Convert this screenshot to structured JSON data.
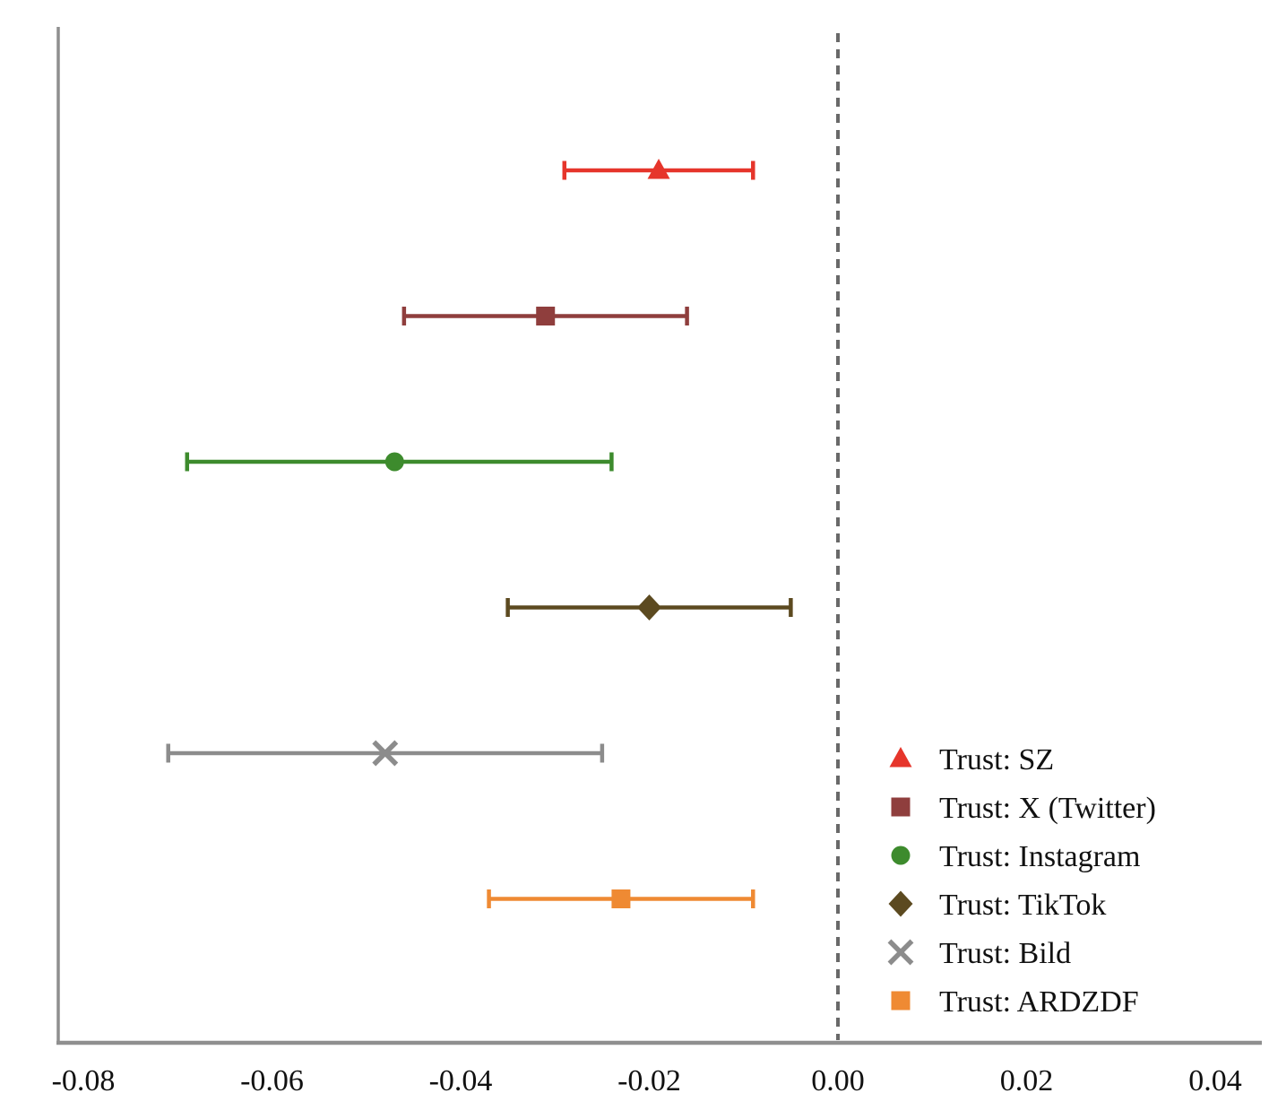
{
  "chart_data": {
    "type": "scatter",
    "subtype": "coefficient-plot-with-error-bars",
    "title": "",
    "xlabel": "",
    "ylabel": "",
    "xlim": [
      -0.0827,
      0.0447
    ],
    "x_ticks": [
      -0.08,
      -0.06,
      -0.04,
      -0.02,
      0.0,
      0.02,
      0.04
    ],
    "x_tick_labels": [
      "-0.08",
      "-0.06",
      "-0.04",
      "-0.02",
      "0.00",
      "0.02",
      "0.04"
    ],
    "y_ticks": [],
    "grid": false,
    "reference_line_x": 0.0,
    "legend_position": "lower right",
    "series": [
      {
        "name": "Trust: SZ",
        "marker": "triangle-up",
        "color": "#e6352b",
        "estimate": -0.019,
        "ci_low": -0.029,
        "ci_high": -0.009
      },
      {
        "name": "Trust: X (Twitter)",
        "marker": "square",
        "color": "#8f3e3d",
        "estimate": -0.031,
        "ci_low": -0.046,
        "ci_high": -0.016
      },
      {
        "name": "Trust: Instagram",
        "marker": "circle",
        "color": "#3d8b2d",
        "estimate": -0.047,
        "ci_low": -0.069,
        "ci_high": -0.024
      },
      {
        "name": "Trust: TikTok",
        "marker": "diamond",
        "color": "#5c4a20",
        "estimate": -0.02,
        "ci_low": -0.035,
        "ci_high": -0.005
      },
      {
        "name": "Trust: Bild",
        "marker": "x",
        "color": "#8c8c8c",
        "estimate": -0.048,
        "ci_low": -0.071,
        "ci_high": -0.025
      },
      {
        "name": "Trust: ARDZDF",
        "marker": "square",
        "color": "#ef8a33",
        "estimate": -0.023,
        "ci_low": -0.037,
        "ci_high": -0.009
      }
    ]
  },
  "colors": {
    "axis_spine": "#8f8f8f",
    "reference_line": "#696969",
    "tick_text": "#111111",
    "legend_text": "#111111",
    "background": "#ffffff"
  }
}
